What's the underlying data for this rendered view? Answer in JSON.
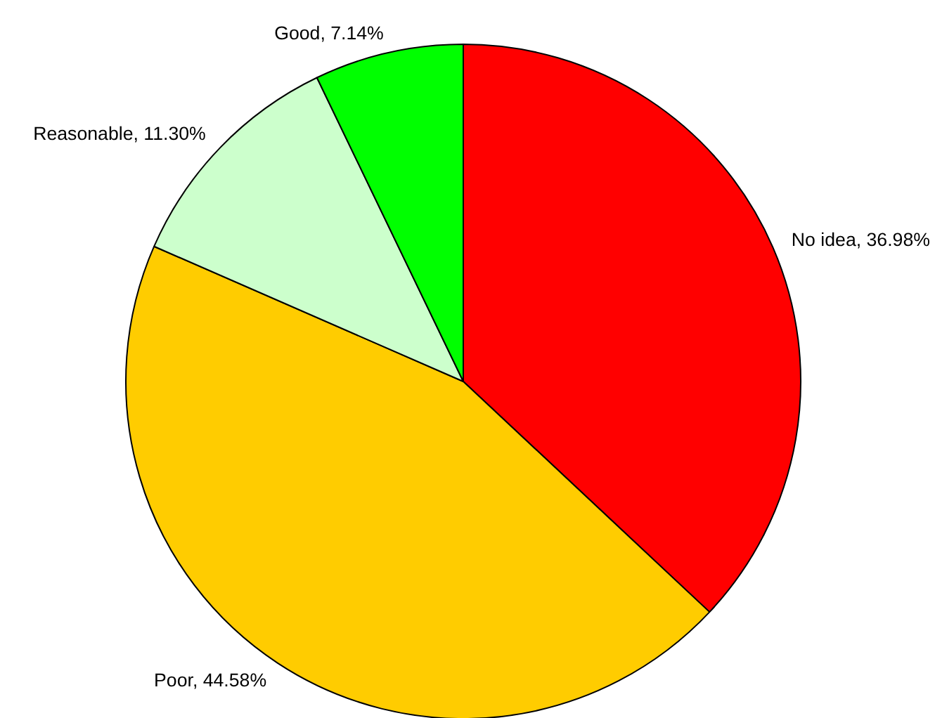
{
  "chart_data": {
    "type": "pie",
    "categories": [
      "No idea",
      "Poor",
      "Reasonable",
      "Good"
    ],
    "values": [
      36.98,
      44.58,
      11.3,
      7.14
    ],
    "colors": [
      "#ff0000",
      "#ffcc00",
      "#ccffcc",
      "#00ff00"
    ],
    "value_labels": [
      "36.98%",
      "44.58%",
      "11.30%",
      "7.14%"
    ]
  }
}
